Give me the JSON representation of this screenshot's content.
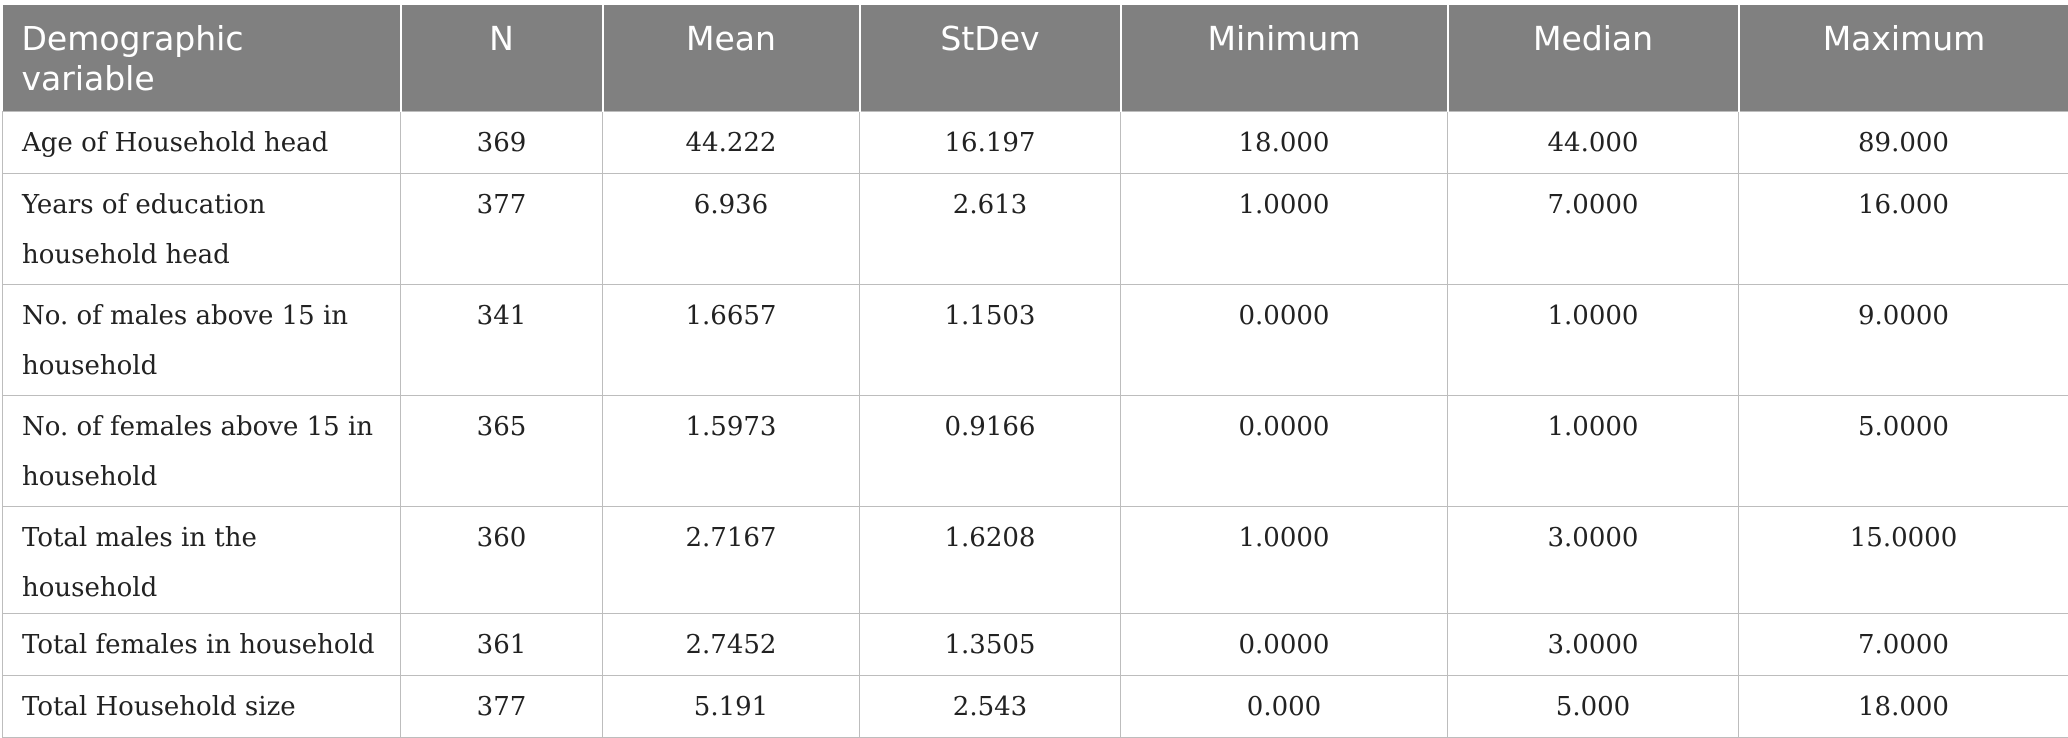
{
  "table": {
    "headers": [
      "Demographic variable",
      "N",
      "Mean",
      "StDev",
      "Minimum",
      "Median",
      "Maximum"
    ],
    "rows": [
      [
        "Age of Household head",
        "369",
        "44.222",
        "16.197",
        "18.000",
        "44.000",
        "89.000"
      ],
      [
        "Years of education household head",
        "377",
        "6.936",
        "2.613",
        "1.0000",
        "7.0000",
        "16.000"
      ],
      [
        "No. of males above 15 in household",
        "341",
        "1.6657",
        "1.1503",
        "0.0000",
        "1.0000",
        "9.0000"
      ],
      [
        "No. of females above 15 in household",
        "365",
        "1.5973",
        "0.9166",
        "0.0000",
        "1.0000",
        "5.0000"
      ],
      [
        "Total males in the household",
        "360",
        "2.7167",
        "1.6208",
        "1.0000",
        "3.0000",
        "15.0000"
      ],
      [
        "Total females in household",
        "361",
        "2.7452",
        "1.3505",
        "0.0000",
        "3.0000",
        "7.0000"
      ],
      [
        "Total Household size",
        "377",
        "5.191",
        "2.543",
        "0.000",
        "5.000",
        "18.000"
      ]
    ]
  }
}
